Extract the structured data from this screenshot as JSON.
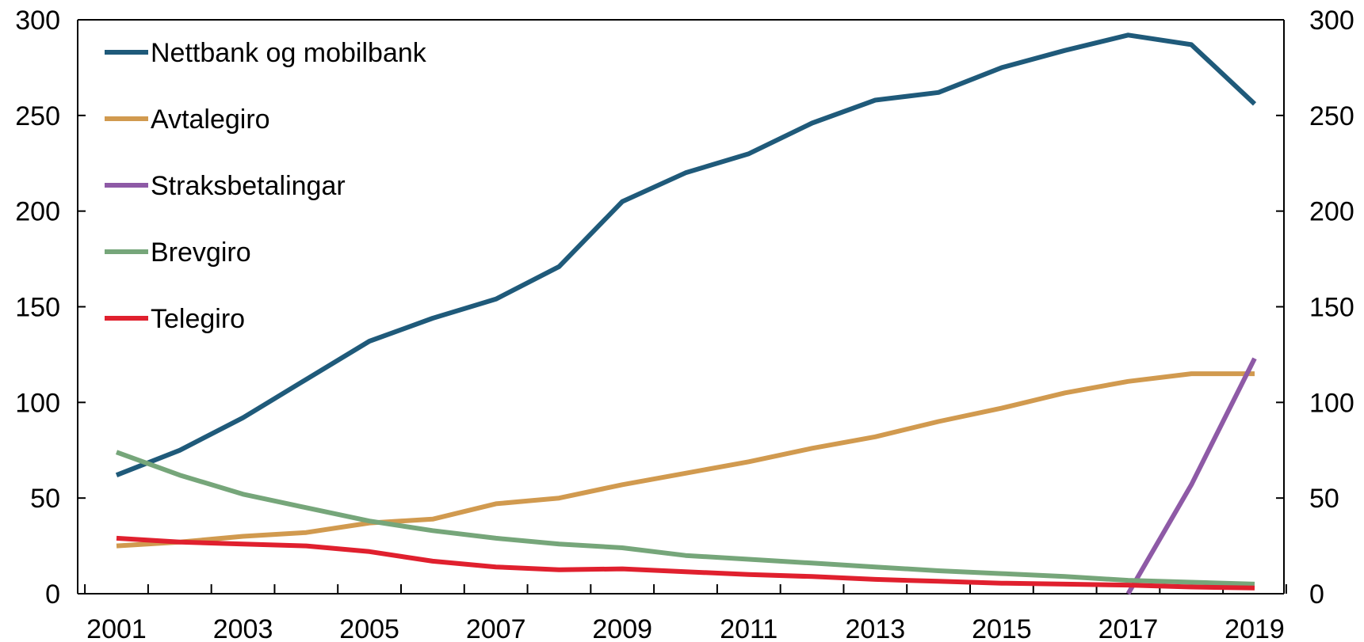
{
  "chart_data": {
    "type": "line",
    "title": "",
    "xlabel": "",
    "ylabel": "",
    "x": [
      2001,
      2002,
      2003,
      2004,
      2005,
      2006,
      2007,
      2008,
      2009,
      2010,
      2011,
      2012,
      2013,
      2014,
      2015,
      2016,
      2017,
      2018,
      2019
    ],
    "x_tick_labels": [
      "2001",
      "2003",
      "2005",
      "2007",
      "2009",
      "2011",
      "2013",
      "2015",
      "2017",
      "2019"
    ],
    "y_ticks": [
      0,
      50,
      100,
      150,
      200,
      250,
      300
    ],
    "ylim": [
      0,
      300
    ],
    "right_axis_ylim": [
      0,
      300
    ],
    "grid": false,
    "legend_position": "top-left",
    "series": [
      {
        "name": "Nettbank og mobilbank",
        "color": "#1f5a7a",
        "values": [
          62,
          75,
          92,
          112,
          132,
          144,
          154,
          171,
          205,
          220,
          230,
          246,
          258,
          262,
          275,
          284,
          292,
          287,
          256
        ]
      },
      {
        "name": "Avtalegiro",
        "color": "#d19a4f",
        "values": [
          25,
          27,
          30,
          32,
          37,
          39,
          47,
          50,
          57,
          63,
          69,
          76,
          82,
          90,
          97,
          105,
          111,
          115,
          115
        ]
      },
      {
        "name": "Straksbetalingar",
        "color": "#8e5aa6",
        "values": [
          null,
          null,
          null,
          null,
          null,
          null,
          null,
          null,
          null,
          null,
          null,
          null,
          null,
          null,
          null,
          null,
          0,
          57,
          123
        ]
      },
      {
        "name": "Brevgiro",
        "color": "#76a67a",
        "values": [
          74,
          62,
          52,
          45,
          38,
          33,
          29,
          26,
          24,
          20,
          18,
          16,
          14,
          12,
          10.5,
          9,
          7,
          6,
          5
        ]
      },
      {
        "name": "Telegiro",
        "color": "#e0202e",
        "values": [
          29,
          27,
          26,
          25,
          22,
          17,
          14,
          12.5,
          13,
          11.5,
          10,
          9,
          7.5,
          6.5,
          5.5,
          5,
          4.5,
          3.5,
          3
        ]
      }
    ]
  }
}
